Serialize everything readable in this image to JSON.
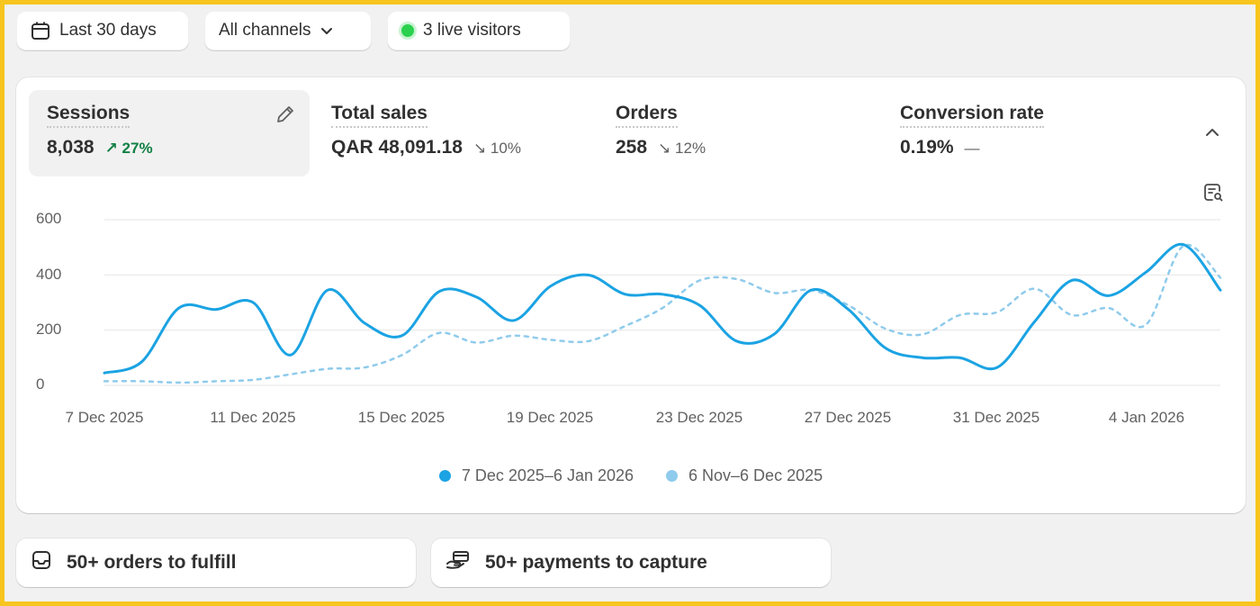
{
  "filters": {
    "date_range": "Last 30 days",
    "channels": "All channels",
    "live_visitors": "3 live visitors"
  },
  "metrics": [
    {
      "label": "Sessions",
      "value": "8,038",
      "change": "27%",
      "direction": "up",
      "selected": true
    },
    {
      "label": "Total sales",
      "value": "QAR 48,091.18",
      "change": "10%",
      "direction": "down",
      "selected": false
    },
    {
      "label": "Orders",
      "value": "258",
      "change": "12%",
      "direction": "down",
      "selected": false
    },
    {
      "label": "Conversion rate",
      "value": "0.19%",
      "change": "—",
      "direction": "flat",
      "selected": false
    }
  ],
  "chart_data": {
    "type": "line",
    "ylim": [
      0,
      600
    ],
    "y_ticks": [
      "600",
      "400",
      "200",
      "0"
    ],
    "x_tick_labels": [
      "7 Dec 2025",
      "11 Dec 2025",
      "15 Dec 2025",
      "19 Dec 2025",
      "23 Dec 2025",
      "27 Dec 2025",
      "31 Dec 2025",
      "4 Jan 2026"
    ],
    "x_tick_index": [
      0,
      4,
      8,
      12,
      16,
      20,
      24,
      28
    ],
    "grid": true,
    "legend_position": "bottom-center",
    "series": [
      {
        "name": "7 Dec 2025–6 Jan 2026",
        "color": "#1ba3e3",
        "style": "solid",
        "values": [
          45,
          85,
          280,
          275,
          300,
          110,
          345,
          225,
          180,
          340,
          320,
          235,
          360,
          400,
          330,
          330,
          290,
          160,
          185,
          345,
          275,
          135,
          100,
          100,
          65,
          230,
          380,
          325,
          410,
          510,
          345
        ]
      },
      {
        "name": "6 Nov–6 Dec 2025",
        "color": "#8fcbec",
        "style": "dotted",
        "values": [
          15,
          15,
          10,
          15,
          20,
          40,
          60,
          65,
          110,
          190,
          155,
          180,
          165,
          160,
          215,
          280,
          380,
          385,
          335,
          345,
          290,
          205,
          185,
          255,
          265,
          350,
          255,
          280,
          220,
          505,
          390
        ]
      }
    ]
  },
  "tasks": {
    "orders": "50+ orders to fulfill",
    "payments": "50+ payments to capture"
  },
  "colors": {
    "accent": "#1ba3e3",
    "comparison": "#8fcbec",
    "positive": "#108043",
    "live": "#2bd14d",
    "frame": "#f7c51e"
  },
  "icons": [
    "calendar-icon",
    "chevron-down-icon",
    "pencil-icon",
    "chevron-up-icon",
    "chart-search-icon",
    "inbox-icon",
    "hand-card-icon"
  ]
}
